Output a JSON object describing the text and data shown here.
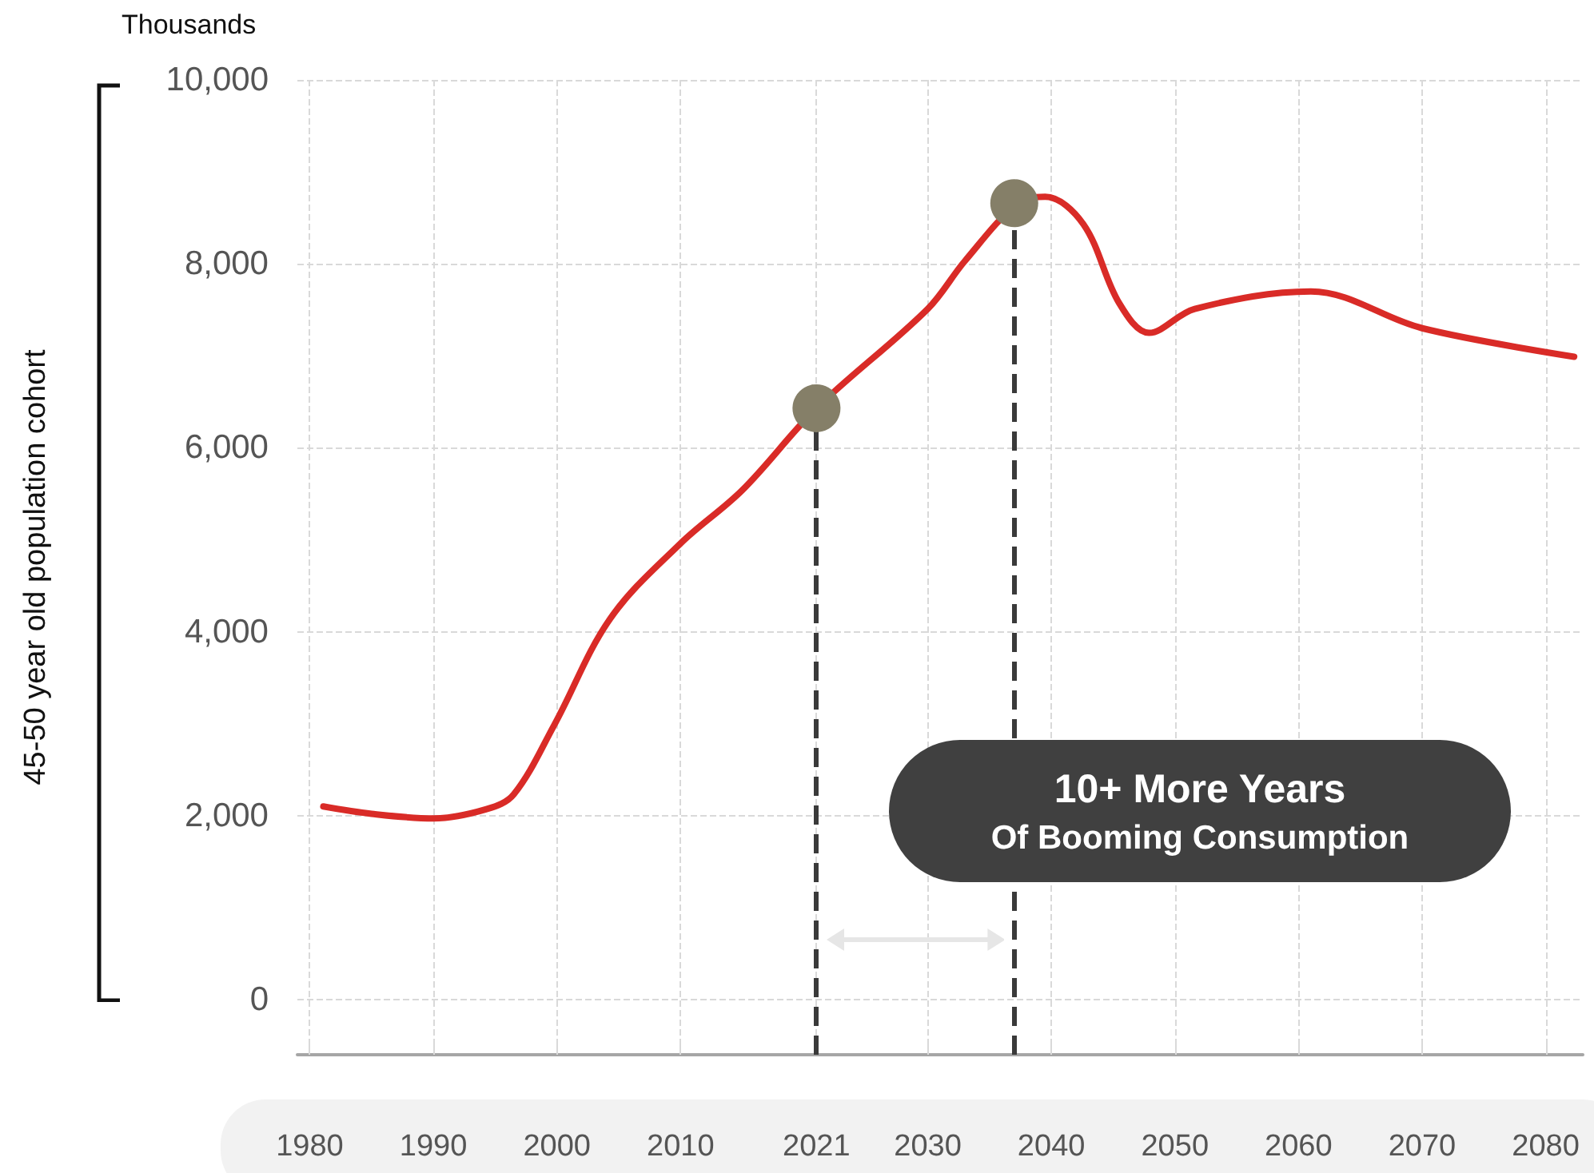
{
  "chart_data": {
    "type": "line",
    "ylabel": "45-50 year old population cohort",
    "annotations": [
      "Thousands",
      "10+ More Years",
      "Of Booming Consumption"
    ],
    "xlim": [
      1979,
      2083
    ],
    "xticks": [
      1980,
      1990,
      2000,
      2010,
      2021,
      2030,
      2040,
      2050,
      2060,
      2070,
      2080
    ],
    "ylim": [
      -600,
      10000
    ],
    "yticks": [
      0,
      {
        "value": 2000,
        "label": "2,000"
      },
      {
        "value": 4000,
        "label": "4,000"
      },
      {
        "value": 6000,
        "label": "6,000"
      },
      {
        "value": 8000,
        "label": "8,000"
      },
      {
        "value": 10000,
        "label": "10,000"
      }
    ],
    "grid": true,
    "series": [
      {
        "color": "#d92b27",
        "marker": "none",
        "x": [
          1981.1,
          1985,
          1990,
          1994.3,
          1996.5,
          1999.8,
          2004.3,
          2010,
          2015,
          2021,
          2030,
          2033,
          2037.3,
          2039.5,
          2042.6,
          2045.5,
          2047.9,
          2051.6,
          2061,
          2070,
          2082.3
        ],
        "values": [
          2100,
          2020,
          1970,
          2070,
          2230,
          2990,
          4140,
          4960,
          5540,
          6430,
          7510,
          8030,
          8660,
          8730,
          8430,
          7570,
          7250,
          7510,
          7700,
          7300,
          6990
        ]
      },
      {
        "type": "scatter",
        "color": "#857f68",
        "marker": "circle",
        "x": [
          2021,
          2037
        ],
        "values": [
          6430,
          8660
        ]
      }
    ],
    "ref_lines": [
      {
        "axis": "x",
        "value": 2021,
        "color": "#3a3a3a",
        "line_style": "dashed"
      },
      {
        "axis": "x",
        "value": 2037,
        "color": "#3a3a3a",
        "line_style": "dashed"
      }
    ]
  }
}
